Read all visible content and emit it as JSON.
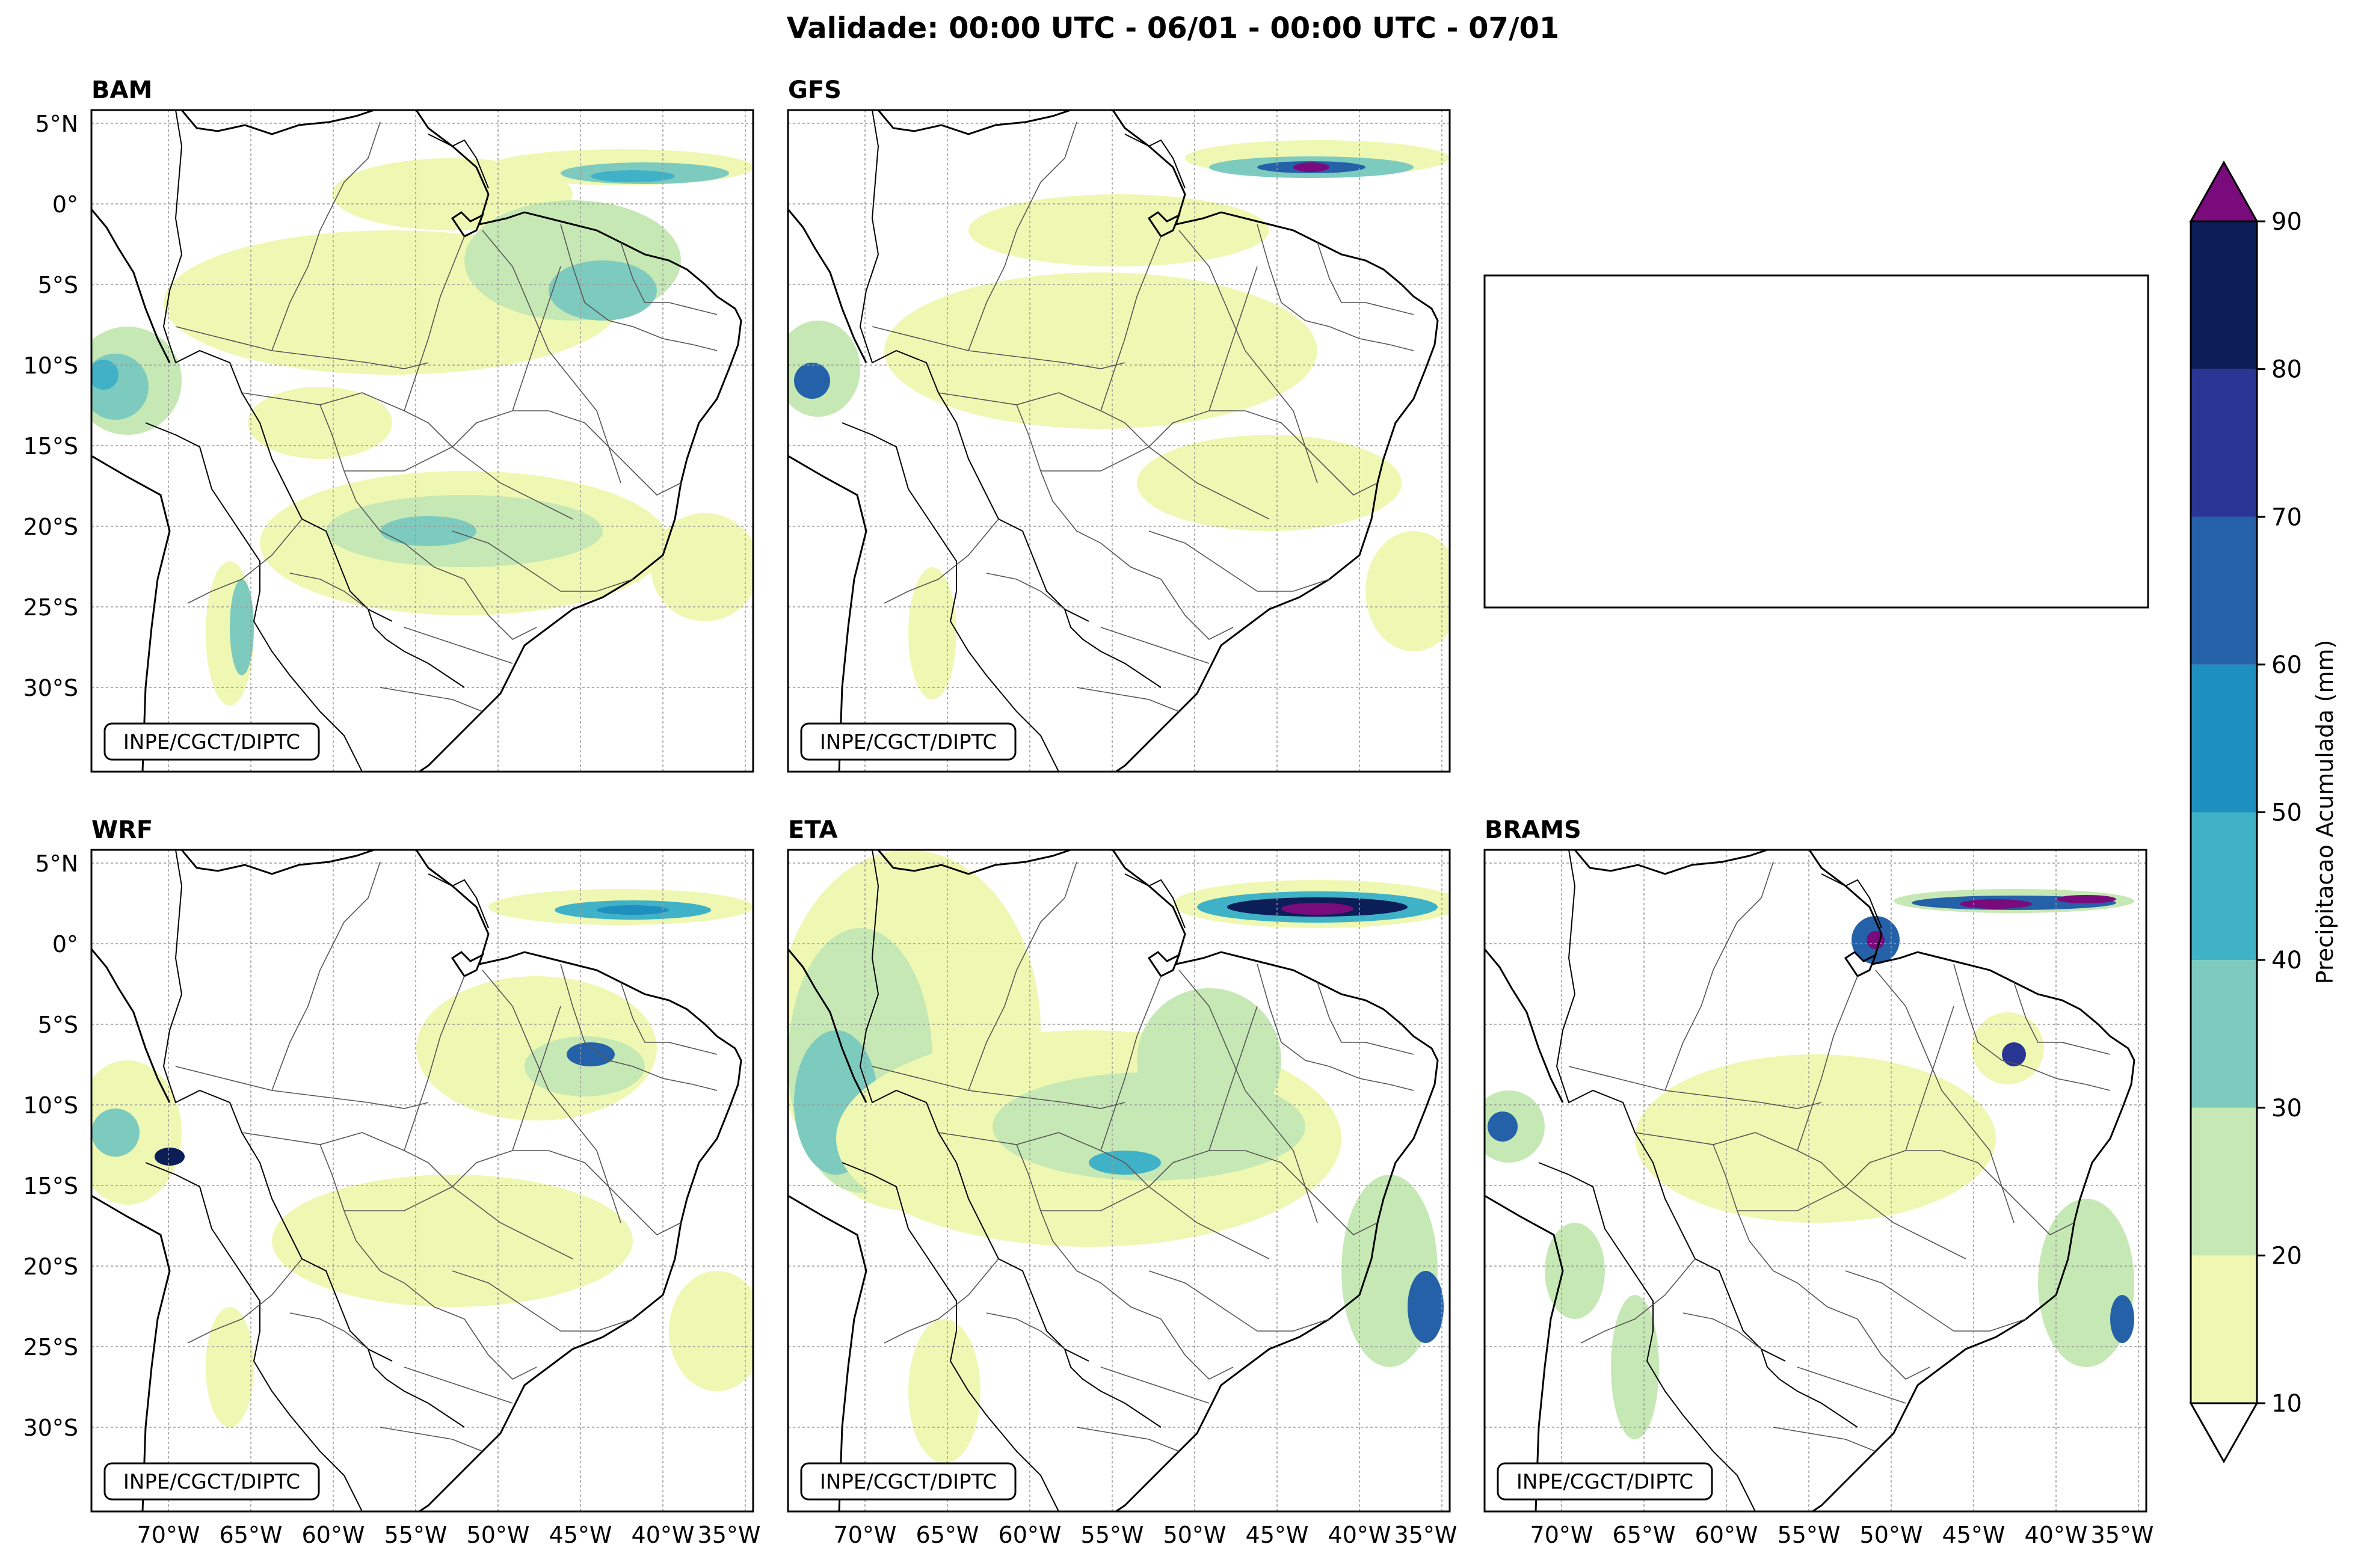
{
  "title": "Validade: 00:00 UTC - 06/01 - 00:00 UTC - 07/01",
  "credit": "INPE/CGCT/DIPTC",
  "panels": [
    {
      "id": "bam",
      "label": "BAM"
    },
    {
      "id": "gfs",
      "label": "GFS"
    },
    {
      "id": "wrf",
      "label": "WRF"
    },
    {
      "id": "eta",
      "label": "ETA"
    },
    {
      "id": "brams",
      "label": "BRAMS"
    }
  ],
  "lat_ticks": [
    "5°N",
    "0°",
    "5°S",
    "10°S",
    "15°S",
    "20°S",
    "25°S",
    "30°S"
  ],
  "lon_ticks": [
    "70°W",
    "65°W",
    "60°W",
    "55°W",
    "50°W",
    "45°W",
    "40°W",
    "35°W"
  ],
  "colorbar": {
    "label": "Precipitacao Acumulada (mm)",
    "ticks": [
      "10",
      "20",
      "30",
      "40",
      "50",
      "60",
      "70",
      "80",
      "90"
    ],
    "colors": [
      "#eff8b2",
      "#c6e8b5",
      "#7dcbbf",
      "#40b2c7",
      "#1e90c0",
      "#2461a8",
      "#283593",
      "#0c1e58"
    ],
    "extend_over_color": "#7a0b7c",
    "extend_under_color": "#ffffff"
  },
  "colors": {
    "light": "#eff8b2",
    "green": "#c6e8b5",
    "teal": "#7dcbbf",
    "cyan": "#40b2c7",
    "blue": "#1e90c0",
    "mid": "#2461a8",
    "indigo": "#283593",
    "navy": "#0c1e58",
    "purple": "#7a0b7c"
  }
}
